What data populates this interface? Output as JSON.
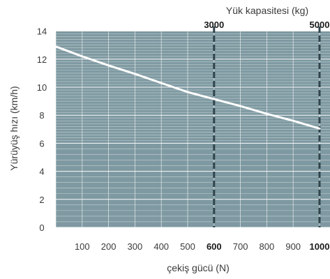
{
  "chart_data": {
    "type": "line",
    "ylabel": "Yürüyüş hızı (km/h)",
    "xlabel": "çekiş gücü (N)",
    "top_axis_label": "Yük kapasitesi (kg)",
    "xlim": [
      0,
      1000
    ],
    "y_ticks": [
      0,
      2,
      4,
      6,
      8,
      10,
      12,
      14
    ],
    "x_ticks": [
      {
        "value": 100,
        "label": "100",
        "bold": false
      },
      {
        "value": 200,
        "label": "200",
        "bold": false
      },
      {
        "value": 300,
        "label": "300",
        "bold": false
      },
      {
        "value": 400,
        "label": "400",
        "bold": false
      },
      {
        "value": 500,
        "label": "500",
        "bold": false
      },
      {
        "value": 600,
        "label": "600",
        "bold": true
      },
      {
        "value": 700,
        "label": "700",
        "bold": false
      },
      {
        "value": 800,
        "label": "800",
        "bold": false
      },
      {
        "value": 900,
        "label": "900",
        "bold": false
      },
      {
        "value": 1000,
        "label": "1000",
        "bold": true
      }
    ],
    "top_ticks": [
      {
        "x": 600,
        "label": "3000"
      },
      {
        "x": 1000,
        "label": "5000"
      }
    ],
    "series": [
      {
        "points": [
          [
            0,
            12.9
          ],
          [
            100,
            12.2
          ],
          [
            200,
            11.55
          ],
          [
            300,
            10.95
          ],
          [
            400,
            10.3
          ],
          [
            500,
            9.65
          ],
          [
            600,
            9.15
          ],
          [
            700,
            8.65
          ],
          [
            800,
            8.1
          ],
          [
            900,
            7.6
          ],
          [
            1000,
            7.05
          ]
        ]
      }
    ],
    "grid": true,
    "colors": {
      "plot_bg": "#7e99a1",
      "grid": "#ffffff",
      "line": "#ffffff",
      "dashed": "#30444c"
    }
  }
}
